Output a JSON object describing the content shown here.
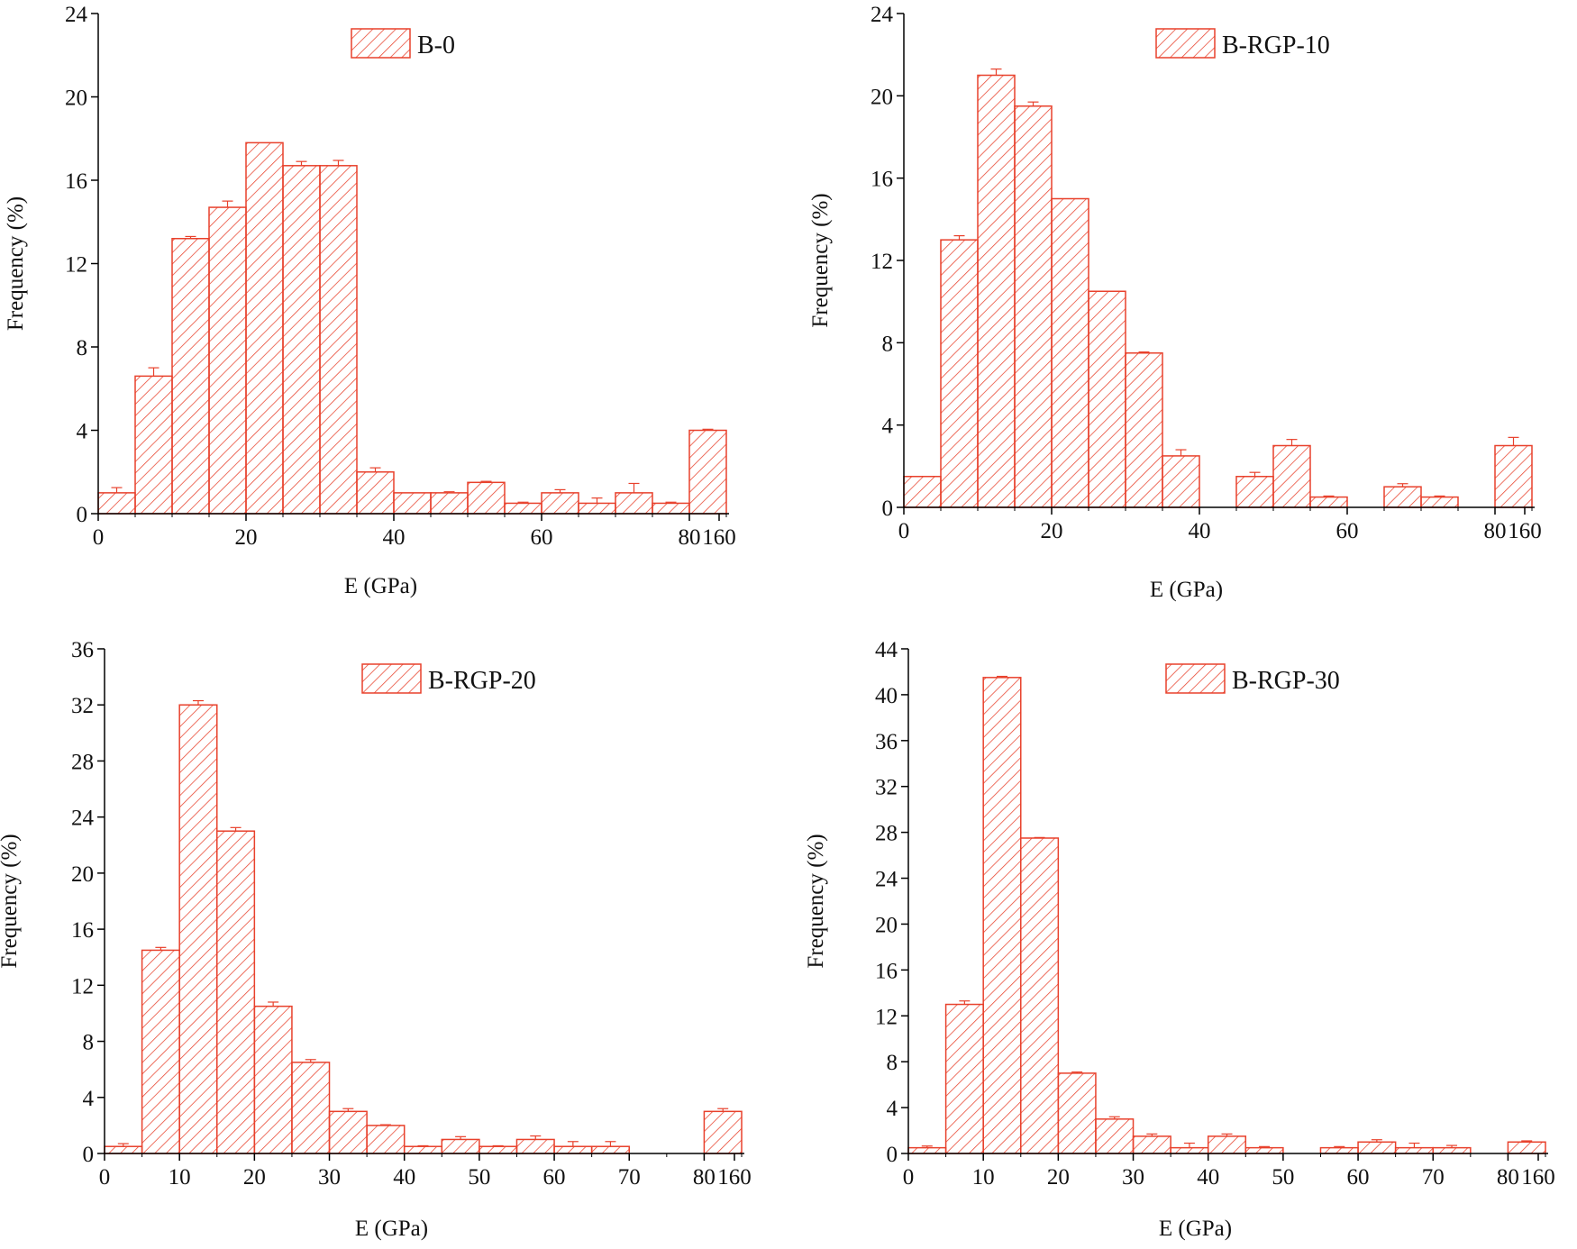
{
  "colors": {
    "bar": "#e8412c",
    "axis": "#000000",
    "background": "#ffffff"
  },
  "chart_data": [
    {
      "type": "bar",
      "legend": "B-0",
      "legend_position": "top-center",
      "xlabel": "E (GPa)",
      "ylabel": "Frequency (%)",
      "ylim": [
        0,
        24
      ],
      "yticks": [
        "0",
        "4",
        "8",
        "12",
        "16",
        "20",
        "24"
      ],
      "xticks": [
        "0",
        "20",
        "40",
        "60",
        "80",
        "160"
      ],
      "bin_edges": [
        0,
        5,
        10,
        15,
        20,
        25,
        30,
        35,
        40,
        45,
        50,
        55,
        60,
        65,
        70,
        75,
        80,
        85
      ],
      "values": [
        1,
        6.6,
        13.2,
        14.7,
        17.8,
        16.7,
        16.7,
        2,
        1,
        1,
        1.5,
        0.5,
        1,
        0.5,
        1,
        0.5,
        4
      ],
      "errors": [
        0.25,
        0.4,
        0.1,
        0.3,
        0,
        0.2,
        0.25,
        0.2,
        0,
        0.05,
        0.05,
        0.05,
        0.15,
        0.25,
        0.45,
        0.05,
        0.05
      ]
    },
    {
      "type": "bar",
      "legend": "B-RGP-10",
      "legend_position": "top-center",
      "xlabel": "E (GPa)",
      "ylabel": "Frequency (%)",
      "ylim": [
        0,
        24
      ],
      "yticks": [
        "0",
        "4",
        "8",
        "12",
        "16",
        "20",
        "24"
      ],
      "xticks": [
        "0",
        "20",
        "40",
        "60",
        "80",
        "160"
      ],
      "bin_edges": [
        0,
        5,
        10,
        15,
        20,
        25,
        30,
        35,
        40,
        45,
        50,
        55,
        60,
        65,
        70,
        75,
        80,
        85
      ],
      "values": [
        1.5,
        13,
        21,
        19.5,
        15,
        10.5,
        7.5,
        2.5,
        0,
        1.5,
        3,
        0.5,
        0,
        1,
        0.5,
        0,
        3
      ],
      "errors": [
        0,
        0.2,
        0.3,
        0.2,
        0,
        0,
        0.05,
        0.3,
        0,
        0.2,
        0.3,
        0.05,
        0,
        0.15,
        0.05,
        0,
        0.4
      ]
    },
    {
      "type": "bar",
      "legend": "B-RGP-20",
      "legend_position": "top-center",
      "xlabel": "E (GPa)",
      "ylabel": "Frequency (%)",
      "ylim": [
        0,
        36
      ],
      "yticks": [
        "0",
        "4",
        "8",
        "12",
        "16",
        "20",
        "24",
        "28",
        "32",
        "36"
      ],
      "xticks": [
        "0",
        "10",
        "20",
        "30",
        "40",
        "50",
        "60",
        "70",
        "80",
        "160"
      ],
      "bin_edges": [
        0,
        5,
        10,
        15,
        20,
        25,
        30,
        35,
        40,
        45,
        50,
        55,
        60,
        65,
        70,
        75,
        80,
        85
      ],
      "values": [
        0.5,
        14.5,
        32,
        23,
        10.5,
        6.5,
        3,
        2,
        0.5,
        1,
        0.5,
        1,
        0.5,
        0.5,
        0,
        0,
        3
      ],
      "errors": [
        0.2,
        0.2,
        0.3,
        0.25,
        0.3,
        0.2,
        0.2,
        0.05,
        0.05,
        0.2,
        0.05,
        0.25,
        0.35,
        0.35,
        0,
        0,
        0.2
      ]
    },
    {
      "type": "bar",
      "legend": "B-RGP-30",
      "legend_position": "top-center",
      "xlabel": "E (GPa)",
      "ylabel": "Frequency (%)",
      "ylim": [
        0,
        44
      ],
      "yticks": [
        "0",
        "4",
        "8",
        "12",
        "16",
        "20",
        "24",
        "28",
        "32",
        "36",
        "40",
        "44"
      ],
      "xticks": [
        "0",
        "10",
        "20",
        "30",
        "40",
        "50",
        "60",
        "70",
        "80",
        "160"
      ],
      "bin_edges": [
        0,
        5,
        10,
        15,
        20,
        25,
        30,
        35,
        40,
        45,
        50,
        55,
        60,
        65,
        70,
        75,
        80,
        85
      ],
      "values": [
        0.5,
        13,
        41.5,
        27.5,
        7,
        3,
        1.5,
        0.5,
        1.5,
        0.5,
        0,
        0.5,
        1,
        0.5,
        0.5,
        0,
        1
      ],
      "errors": [
        0.15,
        0.3,
        0.1,
        0.05,
        0.1,
        0.2,
        0.2,
        0.4,
        0.2,
        0.1,
        0,
        0.1,
        0.2,
        0.4,
        0.2,
        0,
        0.1
      ]
    }
  ]
}
